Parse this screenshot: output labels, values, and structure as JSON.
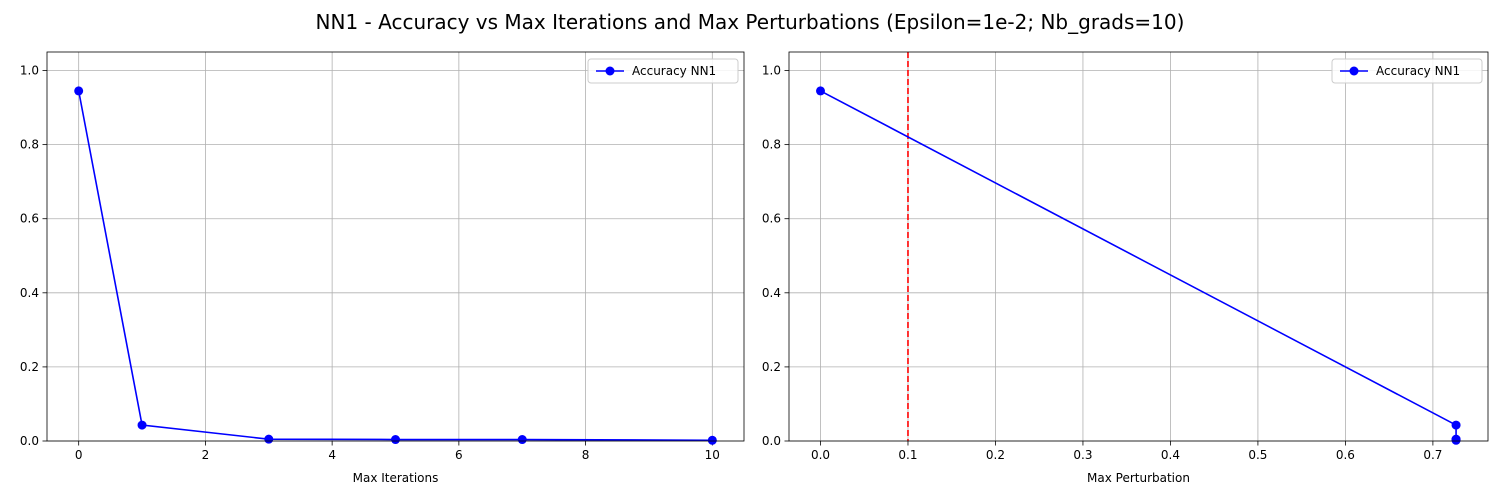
{
  "figure": {
    "title": "NN1 - Accuracy vs Max Iterations and Max Perturbations (Epsilon=1e-2; Nb_grads=10)"
  },
  "chart_data": [
    {
      "type": "line",
      "xlabel": "Max Iterations",
      "ylabel": "",
      "xlim": [
        -0.5,
        10.5
      ],
      "ylim": [
        0,
        1.05
      ],
      "xticks": [
        0,
        2,
        4,
        6,
        8,
        10
      ],
      "xtick_labels": [
        "0",
        "2",
        "4",
        "6",
        "8",
        "10"
      ],
      "yticks": [
        0.0,
        0.2,
        0.4,
        0.6,
        0.8,
        1.0
      ],
      "ytick_labels": [
        "0.0",
        "0.2",
        "0.4",
        "0.6",
        "0.8",
        "1.0"
      ],
      "grid": true,
      "legend_position": "top-right",
      "series": [
        {
          "name": "Accuracy NN1",
          "color": "#0000ff",
          "marker": "circle",
          "x": [
            0,
            1,
            3,
            5,
            7,
            10
          ],
          "y": [
            0.945,
            0.043,
            0.005,
            0.004,
            0.004,
            0.002
          ]
        }
      ],
      "reference_lines": []
    },
    {
      "type": "line",
      "xlabel": "Max Perturbation",
      "ylabel": "",
      "xlim": [
        -0.036,
        0.763
      ],
      "ylim": [
        0,
        1.05
      ],
      "xticks": [
        0.0,
        0.1,
        0.2,
        0.3,
        0.4,
        0.5,
        0.6,
        0.7
      ],
      "xtick_labels": [
        "0.0",
        "0.1",
        "0.2",
        "0.3",
        "0.4",
        "0.5",
        "0.6",
        "0.7"
      ],
      "yticks": [
        0.0,
        0.2,
        0.4,
        0.6,
        0.8,
        1.0
      ],
      "ytick_labels": [
        "0.0",
        "0.2",
        "0.4",
        "0.6",
        "0.8",
        "1.0"
      ],
      "grid": true,
      "legend_position": "top-right",
      "series": [
        {
          "name": "Accuracy NN1",
          "color": "#0000ff",
          "marker": "circle",
          "x": [
            0.0,
            0.7265,
            0.7265,
            0.7265,
            0.7265,
            0.7265
          ],
          "y": [
            0.945,
            0.043,
            0.005,
            0.004,
            0.004,
            0.002
          ]
        }
      ],
      "reference_lines": [
        {
          "orientation": "vertical",
          "x": 0.1,
          "color": "#ff0000",
          "style": "dashed"
        }
      ]
    }
  ]
}
